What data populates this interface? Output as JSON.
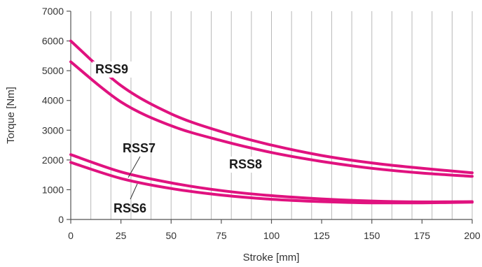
{
  "chart_data": {
    "type": "line",
    "title": "",
    "xlabel": "Stroke [mm]",
    "ylabel": "Torque [Nm]",
    "xlim": [
      0,
      200
    ],
    "ylim": [
      0,
      7000
    ],
    "x_ticks": [
      0,
      25,
      50,
      75,
      100,
      125,
      150,
      175,
      200
    ],
    "x_tick_labels": [
      "0",
      "25",
      "50",
      "75",
      "100",
      "125",
      "150",
      "175",
      "200"
    ],
    "y_ticks": [
      0,
      1000,
      2000,
      3000,
      4000,
      5000,
      6000,
      7000
    ],
    "y_tick_labels": [
      "0",
      "1000",
      "2000",
      "3000",
      "4000",
      "5000",
      "6000",
      "7000"
    ],
    "grid": "vertical",
    "line_color": "#e0127f",
    "series": [
      {
        "name": "RSS9",
        "x": [
          0,
          25,
          50,
          75,
          100,
          125,
          150,
          175,
          200
        ],
        "y": [
          6000,
          4500,
          3550,
          2950,
          2500,
          2150,
          1900,
          1720,
          1570
        ]
      },
      {
        "name": "RSS8",
        "x": [
          0,
          25,
          50,
          75,
          100,
          125,
          150,
          175,
          200
        ],
        "y": [
          5300,
          3950,
          3150,
          2650,
          2250,
          1950,
          1720,
          1560,
          1450
        ]
      },
      {
        "name": "RSS7",
        "x": [
          0,
          25,
          50,
          75,
          100,
          125,
          150,
          175,
          200
        ],
        "y": [
          2180,
          1600,
          1230,
          970,
          800,
          690,
          620,
          590,
          600
        ]
      },
      {
        "name": "RSS6",
        "x": [
          0,
          25,
          50,
          75,
          100,
          125,
          150,
          175,
          200
        ],
        "y": [
          1920,
          1380,
          1040,
          820,
          680,
          600,
          560,
          560,
          580
        ]
      }
    ]
  }
}
